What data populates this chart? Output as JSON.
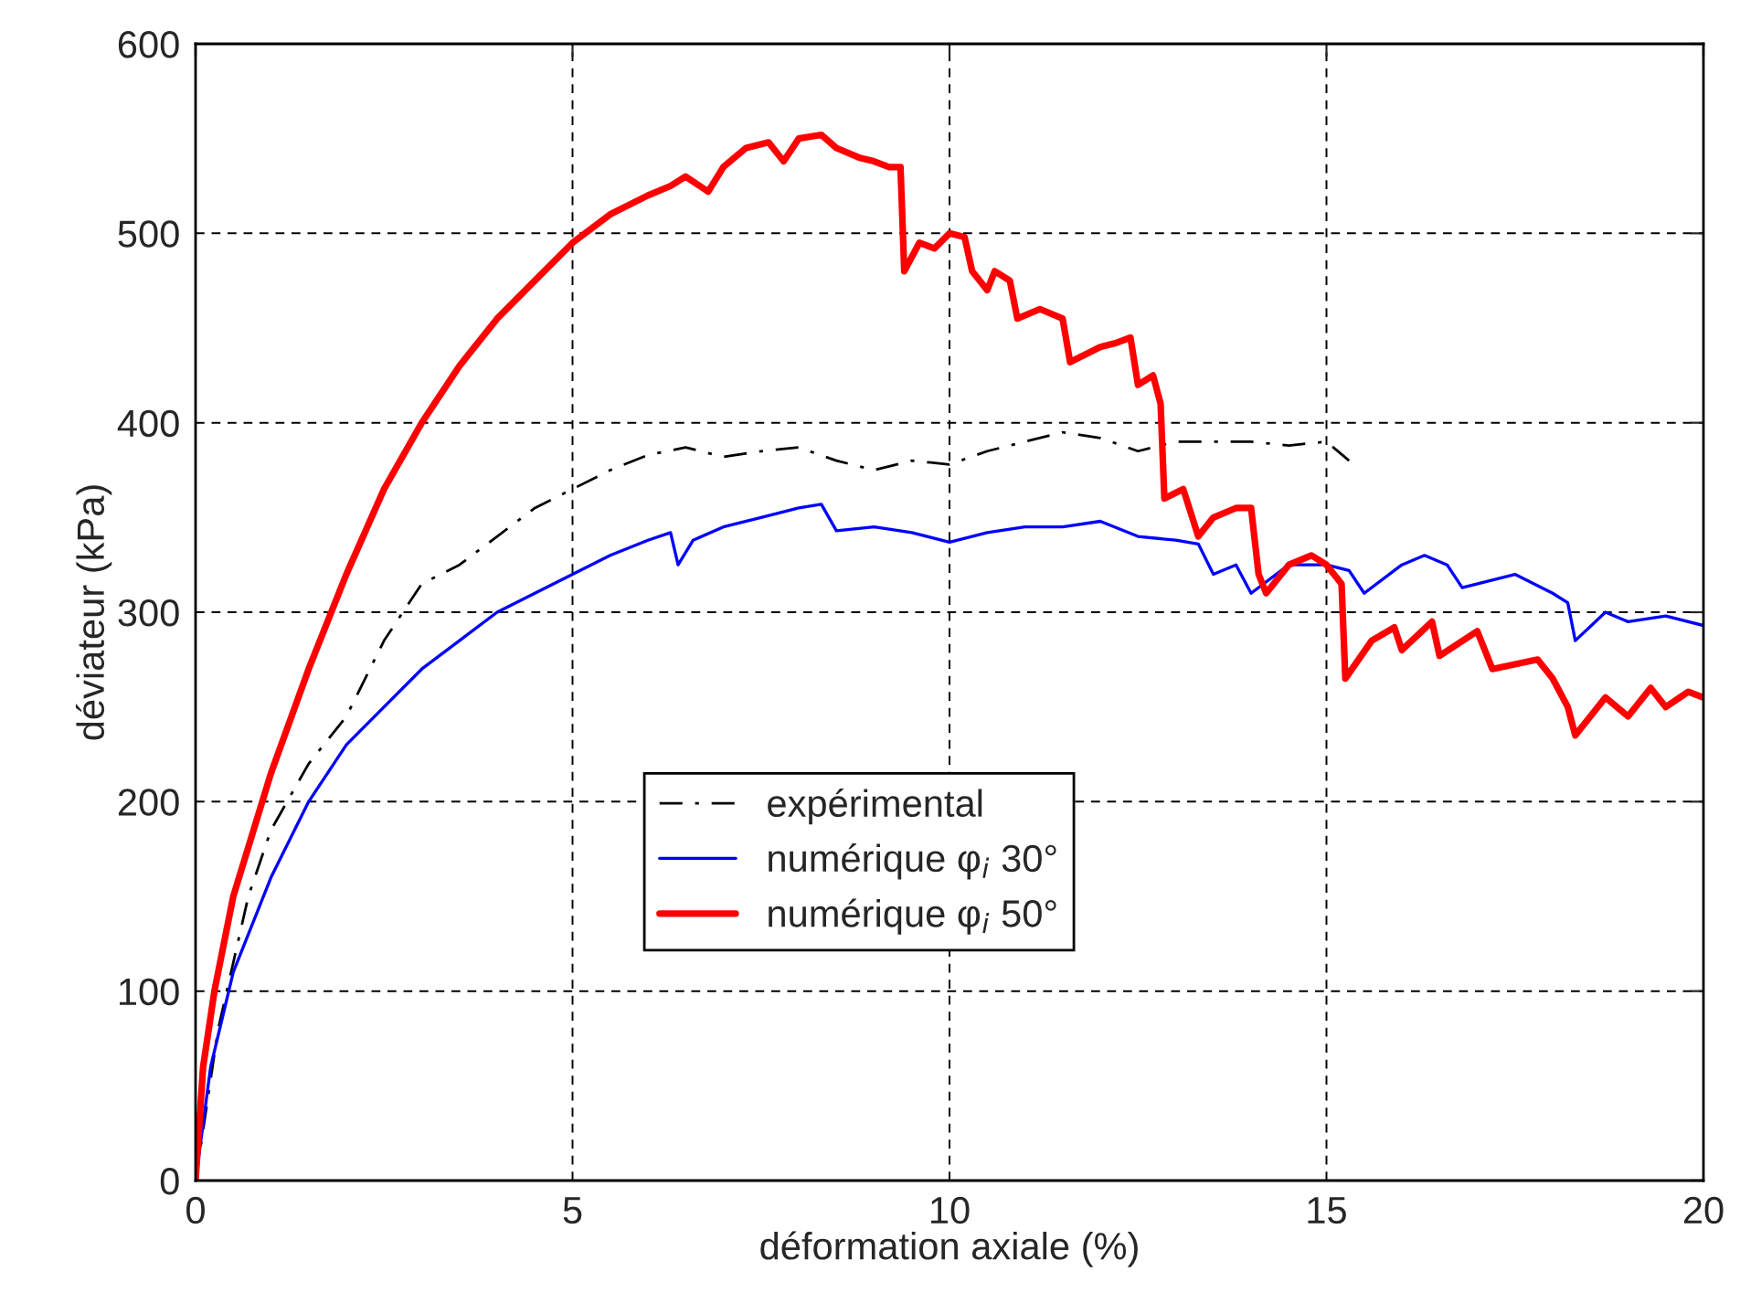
{
  "chart_data": {
    "type": "line",
    "xlabel": "déformation axiale (%)",
    "ylabel": "déviateur (kPa)",
    "xlim": [
      0,
      20
    ],
    "xticks": [
      0,
      5,
      10,
      15,
      20
    ],
    "ylim": [
      0,
      600
    ],
    "yticks": [
      0,
      100,
      200,
      300,
      400,
      500,
      600
    ],
    "grid": true,
    "legend": "center",
    "marker": "none",
    "series": [
      {
        "name": "expérimental",
        "color": "#000000",
        "line_style": "dashed",
        "x": [
          0,
          0.3,
          0.7,
          1,
          1.5,
          2,
          2.5,
          3,
          3.5,
          4,
          4.5,
          5,
          5.5,
          6,
          6.5,
          7,
          7.5,
          8,
          8.5,
          9,
          9.5,
          10,
          10.5,
          11,
          11.5,
          12,
          12.5,
          13,
          14,
          14.5,
          15,
          15.3
        ],
        "values": [
          0,
          80,
          150,
          185,
          220,
          245,
          285,
          315,
          325,
          340,
          355,
          365,
          375,
          383,
          387,
          382,
          385,
          387,
          380,
          375,
          380,
          378,
          385,
          390,
          395,
          392,
          385,
          390,
          390,
          388,
          390,
          380
        ]
      },
      {
        "name": "numérique φ$_{i}$ 30°",
        "color": "#0000ff",
        "line_style": "solid",
        "x": [
          0,
          0.2,
          0.5,
          1,
          1.5,
          2,
          2.5,
          3,
          3.5,
          4,
          4.5,
          5,
          5.5,
          6,
          6.3,
          6.4,
          6.6,
          7,
          7.5,
          8,
          8.3,
          8.5,
          9,
          9.5,
          10,
          10.5,
          11,
          11.5,
          12,
          12.5,
          13,
          13.3,
          13.5,
          13.8,
          14,
          14.5,
          15,
          15.3,
          15.5,
          16,
          16.3,
          16.6,
          16.8,
          17.5,
          18,
          18.2,
          18.3,
          18.7,
          19,
          19.5,
          20
        ],
        "values": [
          0,
          60,
          110,
          160,
          200,
          230,
          250,
          270,
          285,
          300,
          310,
          320,
          330,
          338,
          342,
          325,
          338,
          345,
          350,
          355,
          357,
          343,
          345,
          342,
          337,
          342,
          345,
          345,
          348,
          340,
          338,
          336,
          320,
          325,
          310,
          325,
          325,
          322,
          310,
          325,
          330,
          325,
          313,
          320,
          310,
          305,
          285,
          300,
          295,
          298,
          293
        ]
      },
      {
        "name": "numérique φ$_{i}$ 50°",
        "color": "#ff0000",
        "line_style": "solid",
        "x": [
          0,
          0.1,
          0.25,
          0.5,
          1,
          1.5,
          2,
          2.5,
          3,
          3.5,
          4,
          4.5,
          5,
          5.5,
          6,
          6.3,
          6.5,
          6.8,
          7,
          7.3,
          7.6,
          7.8,
          8,
          8.3,
          8.5,
          8.8,
          9,
          9.2,
          9.35,
          9.4,
          9.6,
          9.8,
          10,
          10.2,
          10.3,
          10.5,
          10.6,
          10.8,
          10.9,
          11.2,
          11.5,
          11.6,
          12,
          12.2,
          12.4,
          12.5,
          12.7,
          12.8,
          12.85,
          13.1,
          13.3,
          13.5,
          13.8,
          14,
          14.1,
          14.2,
          14.5,
          14.8,
          15,
          15.2,
          15.25,
          15.6,
          15.9,
          16,
          16.4,
          16.5,
          17,
          17.2,
          17.8,
          18,
          18.2,
          18.3,
          18.7,
          19,
          19.3,
          19.5,
          19.8,
          20
        ],
        "values": [
          0,
          60,
          100,
          150,
          215,
          270,
          320,
          365,
          400,
          430,
          455,
          475,
          495,
          510,
          520,
          525,
          530,
          522,
          535,
          545,
          548,
          538,
          550,
          552,
          545,
          540,
          538,
          535,
          535,
          480,
          495,
          492,
          500,
          498,
          480,
          470,
          480,
          475,
          455,
          460,
          455,
          432,
          440,
          442,
          445,
          420,
          425,
          410,
          360,
          365,
          340,
          350,
          355,
          355,
          320,
          310,
          325,
          330,
          325,
          315,
          265,
          285,
          292,
          280,
          295,
          277,
          290,
          270,
          275,
          265,
          250,
          235,
          255,
          245,
          260,
          250,
          258,
          255
        ]
      }
    ]
  }
}
